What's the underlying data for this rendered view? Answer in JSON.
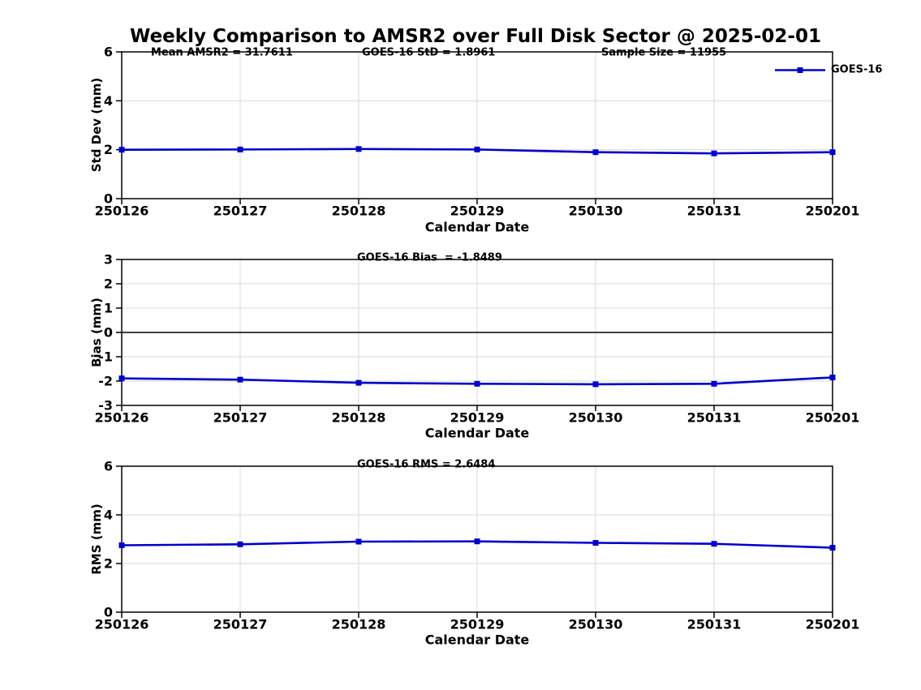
{
  "title": "Weekly Comparison to AMSR2 over Full Disk Sector @ 2025-02-01",
  "legend": {
    "label": "GOES-16",
    "position": "top-right-subplot-1"
  },
  "colors": {
    "line": "#0000CC",
    "grid": "#D9D9D9",
    "axis": "#000000",
    "zero_line": "#000000",
    "text": "#000000",
    "background": "#FFFFFF"
  },
  "chart_data": [
    {
      "type": "line",
      "ylabel": "Std Dev (mm)",
      "xlabel": "Calendar Date",
      "x": [
        "250126",
        "250127",
        "250128",
        "250129",
        "250130",
        "250131",
        "250201"
      ],
      "series": [
        {
          "name": "GOES-16",
          "marker": "square",
          "values": [
            2.0,
            2.01,
            2.03,
            2.01,
            1.9,
            1.85,
            1.9
          ]
        }
      ],
      "ylim": [
        0,
        6
      ],
      "yticks": [
        0,
        2,
        4,
        6
      ],
      "grid": true,
      "zero_line": false,
      "annotations": [
        "Mean AMSR2 = 31.7611",
        "GOES-16 StD = 1.8961",
        "Sample Size = 11955"
      ]
    },
    {
      "type": "line",
      "ylabel": "Bias (mm)",
      "xlabel": "Calendar Date",
      "x": [
        "250126",
        "250127",
        "250128",
        "250129",
        "250130",
        "250131",
        "250201"
      ],
      "series": [
        {
          "name": "GOES-16",
          "marker": "square",
          "values": [
            -1.89,
            -1.94,
            -2.07,
            -2.11,
            -2.13,
            -2.11,
            -1.85
          ]
        }
      ],
      "ylim": [
        -3,
        3
      ],
      "yticks": [
        -3,
        -2,
        -1,
        0,
        1,
        2,
        3
      ],
      "grid": true,
      "zero_line": true,
      "annotations": [
        "GOES-16 Bias  = -1.8489"
      ]
    },
    {
      "type": "line",
      "ylabel": "RMS (mm)",
      "xlabel": "Calendar Date",
      "x": [
        "250126",
        "250127",
        "250128",
        "250129",
        "250130",
        "250131",
        "250201"
      ],
      "series": [
        {
          "name": "GOES-16",
          "marker": "square",
          "values": [
            2.75,
            2.79,
            2.9,
            2.91,
            2.85,
            2.81,
            2.65
          ]
        }
      ],
      "ylim": [
        0,
        6
      ],
      "yticks": [
        0,
        2,
        4,
        6
      ],
      "grid": true,
      "zero_line": false,
      "annotations": [
        "GOES-16 RMS = 2.6484"
      ]
    }
  ]
}
